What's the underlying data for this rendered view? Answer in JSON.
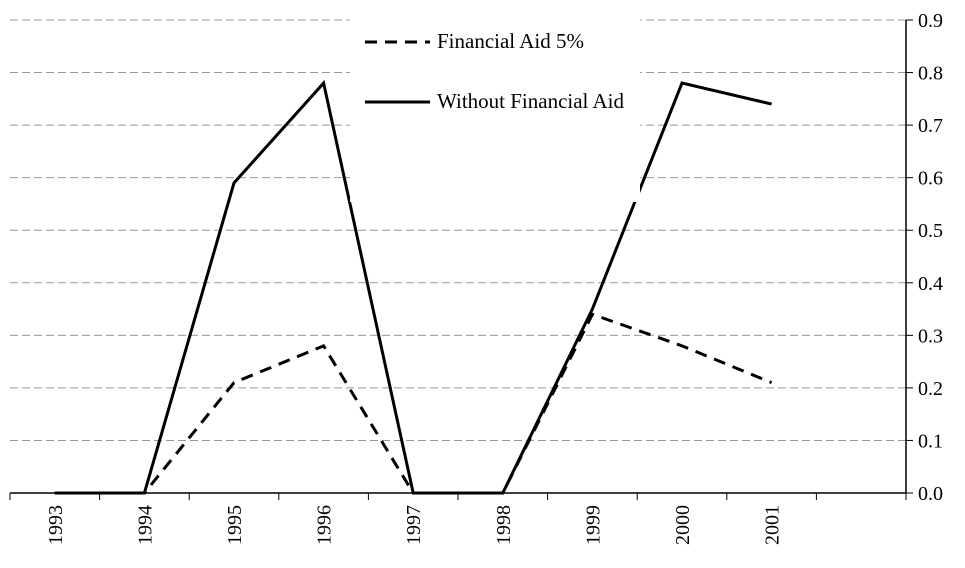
{
  "chart_data": {
    "type": "line",
    "categories": [
      "1993",
      "1994",
      "1995",
      "1996",
      "1997",
      "1998",
      "1999",
      "2000",
      "2001",
      null
    ],
    "series": [
      {
        "name": "Financial Aid 5%",
        "color": "#000000",
        "dash": true,
        "values": [
          0,
          0,
          0.21,
          0.28,
          0,
          0,
          0.34,
          0.28,
          0.21,
          null
        ]
      },
      {
        "name": "Without Financial Aid",
        "color": "#000000",
        "dash": false,
        "values": [
          0,
          0,
          0.59,
          0.78,
          0,
          0,
          0.35,
          0.78,
          0.74,
          null
        ]
      }
    ],
    "ylim": [
      0,
      0.9
    ],
    "yticks": [
      {
        "value": 0,
        "label": "0.0"
      },
      0.1,
      0.2,
      0.3,
      0.4,
      0.5,
      0.6,
      0.7,
      0.8,
      0.9
    ],
    "grid": true,
    "legend": "top"
  }
}
